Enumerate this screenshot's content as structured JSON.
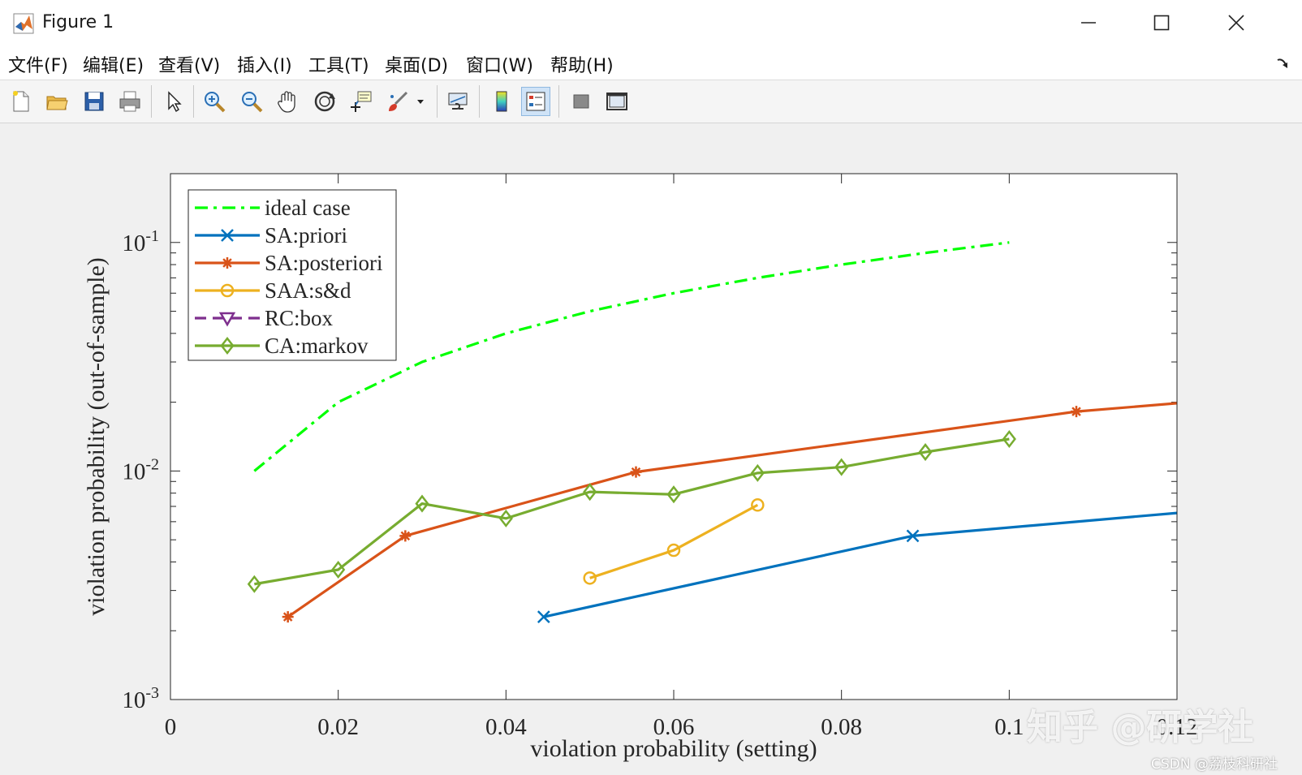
{
  "window": {
    "title": "Figure 1",
    "icon": "matlab-logo-icon"
  },
  "menu": {
    "items": [
      {
        "label": "文件(F)"
      },
      {
        "label": "编辑(E)"
      },
      {
        "label": "查看(V)"
      },
      {
        "label": "插入(I)"
      },
      {
        "label": "工具(T)"
      },
      {
        "label": "桌面(D)"
      },
      {
        "label": "窗口(W)"
      },
      {
        "label": "帮助(H)"
      }
    ]
  },
  "toolbar": {
    "buttons": [
      {
        "icon": "new-figure-icon"
      },
      {
        "icon": "open-file-icon"
      },
      {
        "icon": "save-icon"
      },
      {
        "icon": "print-icon"
      },
      {
        "icon": "select-arrow-icon"
      },
      {
        "icon": "zoom-in-icon"
      },
      {
        "icon": "zoom-out-icon"
      },
      {
        "icon": "pan-hand-icon"
      },
      {
        "icon": "rotate-3d-icon"
      },
      {
        "icon": "data-cursor-icon"
      },
      {
        "icon": "brush-icon"
      },
      {
        "icon": "link-plot-icon"
      },
      {
        "icon": "colorbar-icon"
      },
      {
        "icon": "legend-icon"
      },
      {
        "icon": "hide-plot-tools-icon"
      },
      {
        "icon": "show-plot-tools-icon"
      }
    ]
  },
  "colors": {
    "ideal": "#00ff00",
    "sa_priori": "#0072bd",
    "sa_posteriori": "#d95319",
    "saa": "#edb120",
    "rc_box": "#7e2f8e",
    "ca_markov": "#77ac30"
  },
  "chart_data": {
    "type": "line",
    "xlabel": "violation probability (setting)",
    "ylabel": "violation probability (out-of-sample)",
    "title": "",
    "xlim": [
      0,
      0.12
    ],
    "ylim": [
      0.001,
      0.2
    ],
    "yscale": "log",
    "xticks": [
      0,
      0.02,
      0.04,
      0.06,
      0.08,
      0.1,
      0.12
    ],
    "xtick_labels": [
      "0",
      "0.02",
      "0.04",
      "0.06",
      "0.08",
      "0.1",
      "0.12"
    ],
    "yticks": [
      0.001,
      0.01,
      0.1
    ],
    "ytick_labels": [
      {
        "base": "10",
        "exp": "-3"
      },
      {
        "base": "10",
        "exp": "-2"
      },
      {
        "base": "10",
        "exp": "-1"
      }
    ],
    "grid": false,
    "legend_position": "top-left",
    "series": [
      {
        "name": "ideal case",
        "color": "#00ff00",
        "dash": "dashdot",
        "marker": "none",
        "x": [
          0.01,
          0.02,
          0.03,
          0.04,
          0.05,
          0.06,
          0.07,
          0.08,
          0.09,
          0.1
        ],
        "y": [
          0.01,
          0.02,
          0.03,
          0.04,
          0.05,
          0.06,
          0.07,
          0.08,
          0.09,
          0.1
        ]
      },
      {
        "name": "SA:priori",
        "color": "#0072bd",
        "dash": "solid",
        "marker": "x",
        "x": [
          0.0445,
          0.0885,
          0.121
        ],
        "y": [
          0.0023,
          0.0052,
          0.0066
        ]
      },
      {
        "name": "SA:posteriori",
        "color": "#d95319",
        "dash": "solid",
        "marker": "star",
        "x": [
          0.014,
          0.028,
          0.0555,
          0.108,
          0.125
        ],
        "y": [
          0.0023,
          0.0052,
          0.0099,
          0.0182,
          0.0205
        ]
      },
      {
        "name": "SAA:s&d",
        "color": "#edb120",
        "dash": "solid",
        "marker": "circle",
        "x": [
          0.05,
          0.06,
          0.07
        ],
        "y": [
          0.0034,
          0.0045,
          0.0071
        ]
      },
      {
        "name": "RC:box",
        "color": "#7e2f8e",
        "dash": "dashed",
        "marker": "triangle-down",
        "x": [],
        "y": []
      },
      {
        "name": "CA:markov",
        "color": "#77ac30",
        "dash": "solid",
        "marker": "diamond",
        "x": [
          0.01,
          0.02,
          0.03,
          0.04,
          0.05,
          0.06,
          0.07,
          0.08,
          0.09,
          0.1
        ],
        "y": [
          0.0032,
          0.0037,
          0.0072,
          0.0062,
          0.0081,
          0.0079,
          0.0098,
          0.0104,
          0.0121,
          0.0138
        ]
      }
    ]
  },
  "watermark": {
    "main": "知乎 @研学社",
    "sub": "CSDN @荔枝科研社"
  }
}
